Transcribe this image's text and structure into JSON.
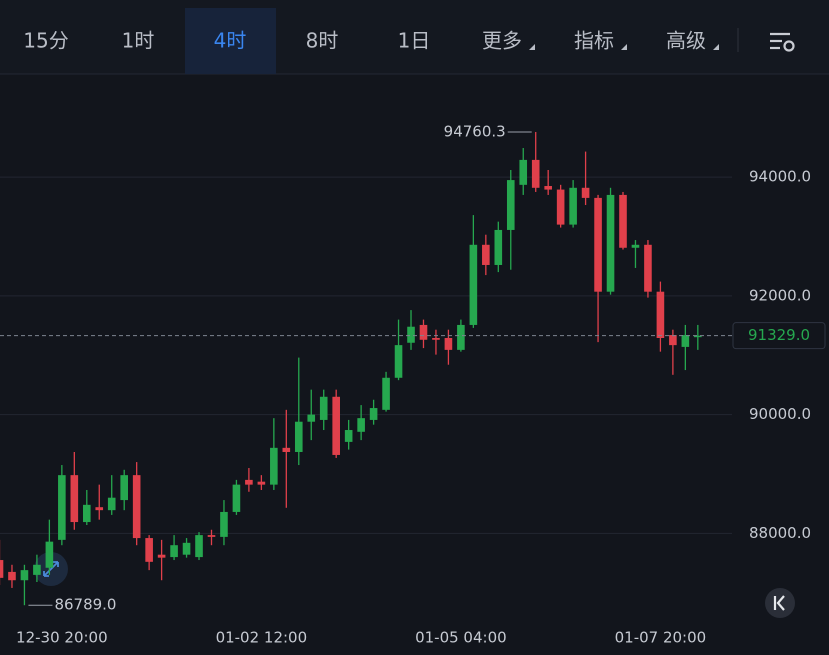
{
  "toolbar": {
    "tabs": [
      "15分",
      "1时",
      "4时",
      "8时",
      "1日",
      "更多",
      "指标",
      "高级"
    ],
    "active": "4时"
  },
  "chart_data": {
    "type": "candlestick",
    "categories": [
      null,
      null,
      null,
      null,
      null,
      "12-30 20:00",
      null,
      null,
      null,
      null,
      null,
      null,
      null,
      null,
      null,
      null,
      null,
      null,
      null,
      null,
      null,
      "01-02 12:00",
      null,
      null,
      null,
      null,
      null,
      null,
      null,
      null,
      null,
      null,
      null,
      null,
      null,
      null,
      null,
      "01-05 04:00",
      null,
      null,
      null,
      null,
      null,
      null,
      null,
      null,
      null,
      null,
      null,
      null,
      null,
      null,
      null,
      "01-07 20:00",
      null,
      null,
      null
    ],
    "open": [
      87550,
      87350,
      87210,
      87300,
      87420,
      87890,
      88980,
      88190,
      88440,
      88390,
      88560,
      88980,
      87920,
      87640,
      87600,
      87640,
      87600,
      87970,
      87940,
      88360,
      88900,
      88870,
      88820,
      89440,
      89370,
      89880,
      89910,
      90300,
      89540,
      89710,
      89910,
      90080,
      90620,
      91210,
      91510,
      91290,
      91290,
      91090,
      91510,
      92860,
      92520,
      93110,
      93870,
      94290,
      93850,
      93790,
      93200,
      93820,
      93650,
      92070,
      93700,
      92810,
      92860,
      92070,
      91340,
      91140,
      91310
    ],
    "high": [
      87890,
      87470,
      87470,
      87640,
      88230,
      89150,
      89370,
      88730,
      88820,
      88980,
      89070,
      89200,
      87970,
      87890,
      87970,
      87920,
      88020,
      88060,
      88560,
      88900,
      89100,
      88980,
      89940,
      90080,
      90960,
      90420,
      90420,
      90420,
      89910,
      90160,
      90250,
      90720,
      91600,
      91760,
      91600,
      91430,
      91430,
      91600,
      93360,
      93030,
      93250,
      94120,
      94490,
      94760.3,
      94120,
      93870,
      93950,
      94430,
      93700,
      93820,
      93750,
      92940,
      92940,
      92240,
      91430,
      91510,
      91510
    ],
    "low": [
      87130,
      87080,
      86789,
      87180,
      87300,
      87800,
      88060,
      88140,
      88230,
      88310,
      88390,
      87800,
      87380,
      87210,
      87550,
      87590,
      87550,
      87800,
      87800,
      88310,
      88700,
      88730,
      88730,
      88430,
      89150,
      89570,
      89740,
      89270,
      89410,
      89570,
      89830,
      90050,
      90580,
      91090,
      91120,
      91010,
      90840,
      91060,
      91460,
      92350,
      92400,
      92440,
      93700,
      93750,
      93700,
      93150,
      93150,
      93530,
      91220,
      92020,
      92780,
      92470,
      91970,
      91060,
      90670,
      90750,
      91090
    ],
    "close": [
      87250,
      87210,
      87380,
      87470,
      87860,
      88980,
      88190,
      88480,
      88390,
      88600,
      88980,
      87920,
      87520,
      87590,
      87800,
      87840,
      87970,
      87940,
      88360,
      88820,
      88820,
      88820,
      89440,
      89370,
      89880,
      90000,
      90300,
      89320,
      89740,
      89940,
      90110,
      90620,
      91170,
      91480,
      91260,
      91260,
      91090,
      91510,
      92860,
      92520,
      93110,
      93950,
      94290,
      93820,
      93790,
      93200,
      93820,
      93650,
      92070,
      93700,
      92810,
      92860,
      92070,
      91290,
      91170,
      91340,
      91329
    ],
    "up_color": "#26a84f",
    "down_color": "#e0404b",
    "ylim": [
      86540,
      95720
    ],
    "yticks": [
      {
        "value": 88000,
        "label": "88000.0"
      },
      {
        "value": 90000,
        "label": "90000.0"
      },
      {
        "value": 92000,
        "label": "92000.0"
      },
      {
        "value": 94000,
        "label": "94000.0"
      }
    ],
    "grid": true,
    "last_price": {
      "value": 91329,
      "label": "91329.0"
    },
    "high_label": "94760.3",
    "low_label": "86789.0"
  }
}
